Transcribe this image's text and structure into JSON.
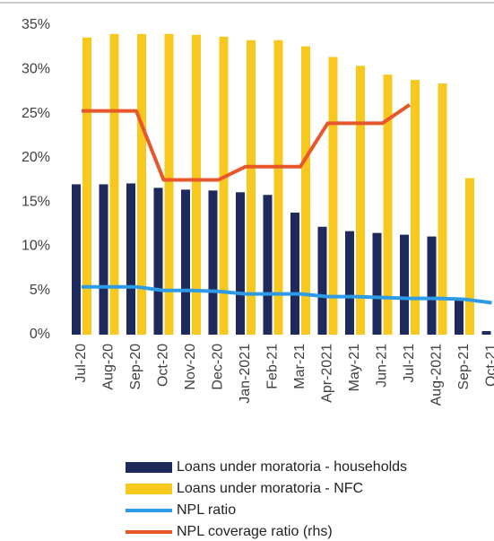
{
  "chart_data": {
    "type": "bar",
    "categories": [
      "Jul-20",
      "Aug-20",
      "Sep-20",
      "Oct-20",
      "Nov-20",
      "Dec-20",
      "Jan-2021",
      "Feb-21",
      "Mar-21",
      "Apr-2021",
      "May-21",
      "Jun-21",
      "Jul-21",
      "Aug-2021",
      "Sep-21",
      "Oct-21"
    ],
    "series": [
      {
        "name": "Loans under moratoria - households",
        "type": "bar",
        "color": "#1f2a5c",
        "values": [
          17,
          17,
          17.1,
          16.6,
          16.4,
          16.3,
          16.1,
          15.8,
          13.8,
          12.2,
          11.7,
          11.5,
          11.3,
          11.1,
          4,
          0.4
        ]
      },
      {
        "name": "Loans under moratoria - NFC",
        "type": "bar",
        "color": "#f7c81e",
        "values": [
          33.6,
          34,
          34,
          34,
          33.9,
          33.7,
          33.3,
          33.3,
          32.6,
          31.4,
          30.4,
          29.4,
          28.8,
          28.4,
          17.7,
          null
        ]
      },
      {
        "name": "NPL ratio",
        "type": "line",
        "color": "#2e9be6",
        "values": [
          5.4,
          5.4,
          5.4,
          5.0,
          5.0,
          4.9,
          4.6,
          4.6,
          4.6,
          4.3,
          4.3,
          4.2,
          4.1,
          4.1,
          4.0,
          3.6
        ]
      },
      {
        "name": "NPL coverage ratio (rhs)",
        "type": "line",
        "color": "#e8572a",
        "values": [
          25.3,
          25.3,
          25.3,
          17.5,
          17.5,
          17.5,
          19,
          19,
          19,
          23.9,
          23.9,
          23.9,
          26,
          null,
          null,
          null
        ]
      }
    ],
    "ylim": [
      0,
      35
    ],
    "yticks": [
      {
        "value": 0,
        "label": "0%"
      },
      {
        "value": 5,
        "label": "5%"
      },
      {
        "value": 10,
        "label": "10%"
      },
      {
        "value": 15,
        "label": "15%"
      },
      {
        "value": 20,
        "label": "20%"
      },
      {
        "value": 25,
        "label": "25%"
      },
      {
        "value": 30,
        "label": "30%"
      },
      {
        "value": 35,
        "label": "35%"
      }
    ]
  }
}
